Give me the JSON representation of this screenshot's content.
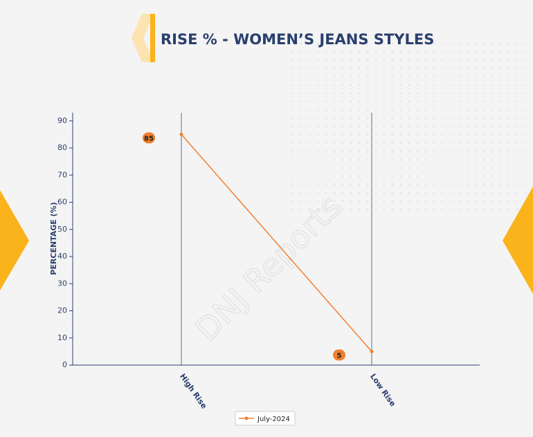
{
  "chart_data": {
    "type": "line",
    "title": "RISE % - WOMEN’S JEANS STYLES",
    "y_label": "PERCENTAGE (%)",
    "categories": [
      "High Rise",
      "Low Rise"
    ],
    "series": [
      {
        "name": "July-2024",
        "color": "#f07f2e",
        "values": [
          85,
          5
        ]
      }
    ],
    "ylim": [
      0,
      93
    ],
    "yticks": [
      0,
      10,
      20,
      30,
      40,
      50,
      60,
      70,
      80,
      90
    ],
    "grid": "x",
    "legend": "bottom",
    "watermark": "DNJ Reports"
  }
}
